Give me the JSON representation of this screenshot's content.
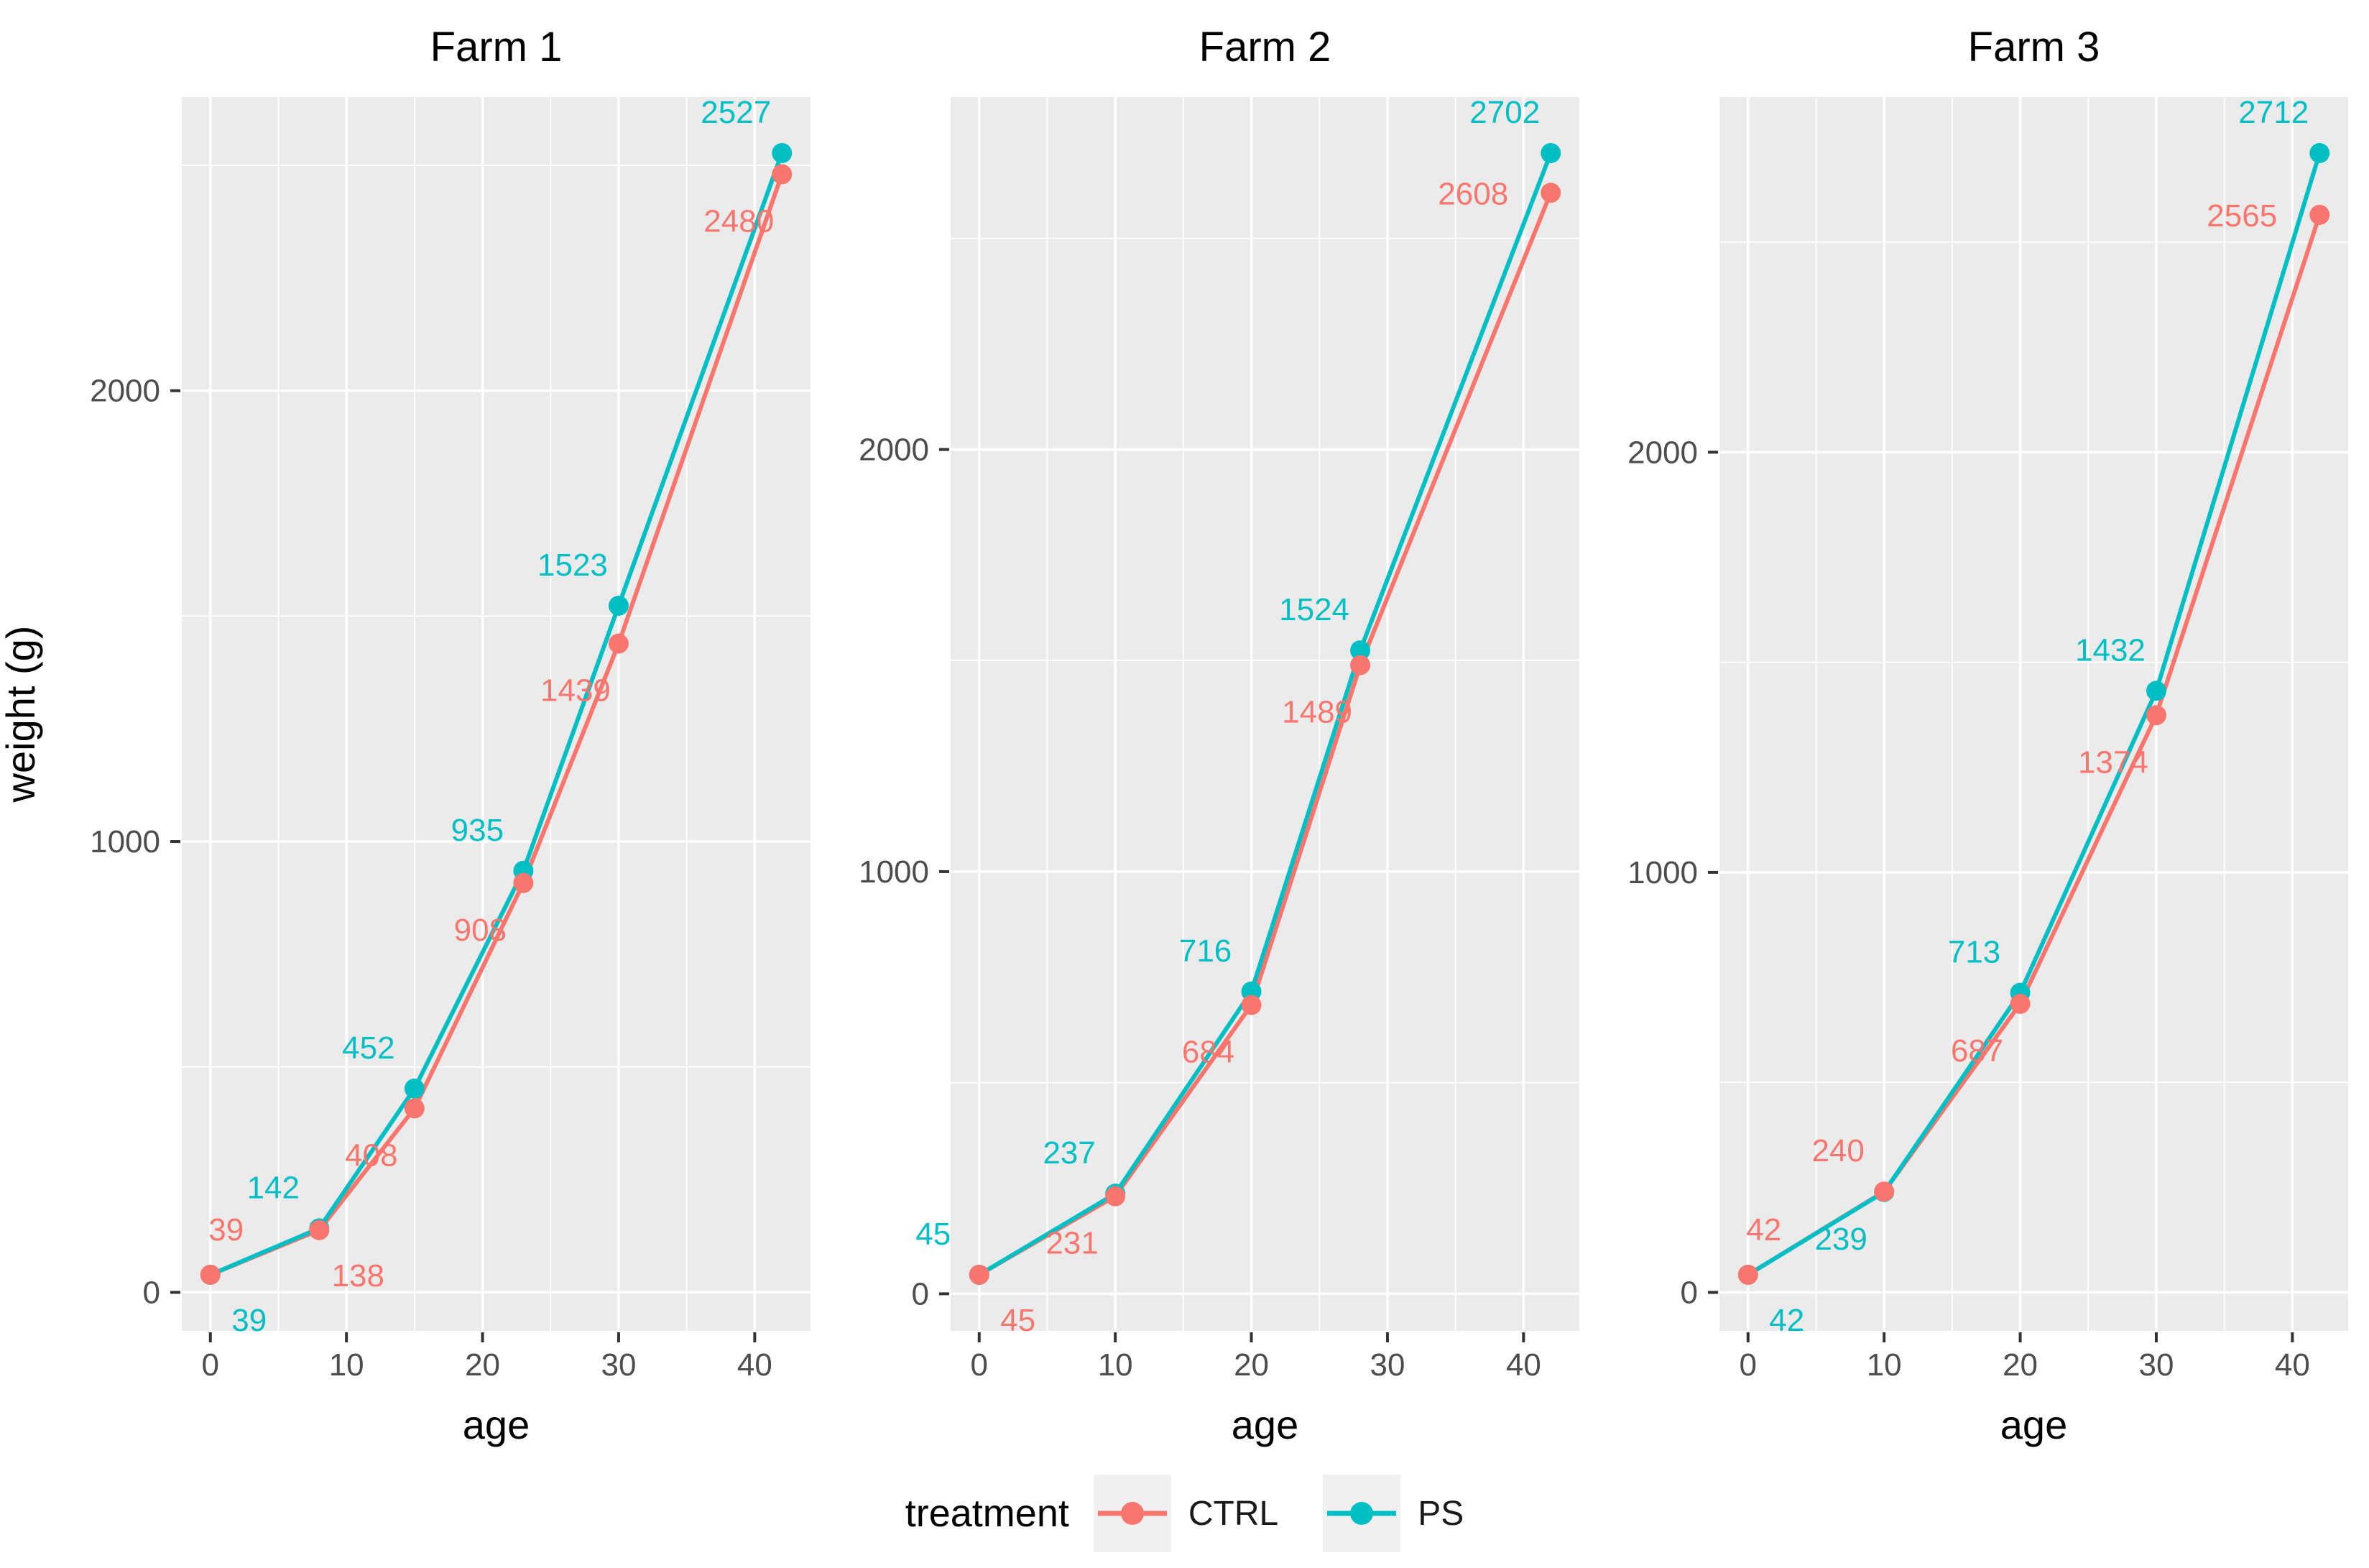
{
  "figure": {
    "background": "#FFFFFF"
  },
  "colors": {
    "CTRL": "#F8766D",
    "PS": "#00BFC4",
    "panel_bg": "#EBEBEB",
    "grid": "#FFFFFF",
    "axis_text": "#4D4D4D",
    "tick_mark": "#333333",
    "title_text": "#000000",
    "legend_key_bg": "#F0F0F0"
  },
  "y_axis": {
    "title": "weight (g)",
    "ticks": [
      0,
      1000,
      2000
    ],
    "minor_ticks": [
      500,
      1500,
      2500
    ]
  },
  "x_axis": {
    "title": "age",
    "ticks": [
      0,
      10,
      20,
      30,
      40
    ],
    "minor_ticks": [
      5,
      15,
      25,
      35
    ],
    "domain": [
      -2.1,
      44.1
    ]
  },
  "legend": {
    "title": "treatment",
    "items": [
      {
        "label": "CTRL",
        "color": "#F8766D"
      },
      {
        "label": "PS",
        "color": "#00BFC4"
      }
    ]
  },
  "chart_data": [
    {
      "type": "line",
      "title": "Farm 1",
      "xlabel": "age",
      "ylabel": "weight (g)",
      "x": [
        0,
        8,
        15,
        23,
        30,
        42
      ],
      "grid": true,
      "legend_position": "bottom",
      "series": [
        {
          "name": "CTRL",
          "color": "#F8766D",
          "values": [
            39,
            138,
            408,
            908,
            1439,
            2480
          ],
          "label_pos": [
            "above",
            "below-right",
            "below-left",
            "below-left",
            "below-left",
            "below-left"
          ]
        },
        {
          "name": "PS",
          "color": "#00BFC4",
          "values": [
            39,
            142,
            452,
            935,
            1523,
            2527
          ],
          "label_pos": [
            "below-right",
            "above-left",
            "above-left",
            "above-left",
            "above-left",
            "above-left"
          ]
        }
      ]
    },
    {
      "type": "line",
      "title": "Farm 2",
      "xlabel": "age",
      "ylabel": "weight (g)",
      "x": [
        0,
        10,
        20,
        28,
        42
      ],
      "grid": true,
      "legend_position": "bottom",
      "series": [
        {
          "name": "CTRL",
          "color": "#F8766D",
          "values": [
            45,
            231,
            684,
            1489,
            2608
          ],
          "label_pos": [
            "below-right",
            "below-left",
            "below-left",
            "below-left",
            "left"
          ]
        },
        {
          "name": "PS",
          "color": "#00BFC4",
          "values": [
            45,
            237,
            716,
            1524,
            2702
          ],
          "label_pos": [
            "above-left",
            "above-left",
            "above-left",
            "above-left",
            "above-left"
          ]
        }
      ]
    },
    {
      "type": "line",
      "title": "Farm 3",
      "xlabel": "age",
      "ylabel": "weight (g)",
      "x": [
        0,
        10,
        20,
        30,
        42
      ],
      "grid": true,
      "legend_position": "bottom",
      "series": [
        {
          "name": "CTRL",
          "color": "#F8766D",
          "values": [
            42,
            240,
            687,
            1374,
            2565
          ],
          "label_pos": [
            "above",
            "above-left",
            "below-left",
            "below-left",
            "left"
          ]
        },
        {
          "name": "PS",
          "color": "#00BFC4",
          "values": [
            42,
            239,
            713,
            1432,
            2712
          ],
          "label_pos": [
            "below-right",
            "below-left",
            "above-left",
            "above-left",
            "above-left"
          ]
        }
      ]
    }
  ]
}
